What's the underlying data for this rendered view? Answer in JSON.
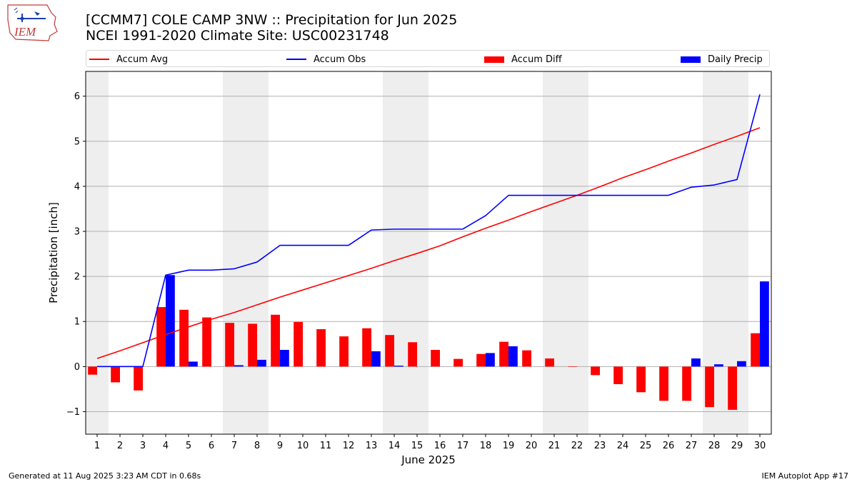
{
  "logo": {
    "text": "IEM"
  },
  "header": {
    "title": "[CCMM7] COLE CAMP 3NW :: Precipitation for Jun 2025",
    "subtitle": "NCEI 1991-2020 Climate Site: USC00231748"
  },
  "legend": {
    "items": [
      {
        "label": "Accum Avg",
        "kind": "line",
        "color": "#ff0000"
      },
      {
        "label": "Accum Obs",
        "kind": "line",
        "color": "#0000ff"
      },
      {
        "label": "Accum Diff",
        "kind": "box",
        "color": "#ff0000"
      },
      {
        "label": "Daily Precip",
        "kind": "box",
        "color": "#0000ff"
      }
    ]
  },
  "footer": {
    "left": "Generated at 11 Aug 2025 3:23 AM CDT in 0.68s",
    "right": "IEM Autoplot App #17"
  },
  "chart_data": {
    "type": "bar",
    "title": "[CCMM7] COLE CAMP 3NW :: Precipitation for Jun 2025",
    "xlabel": "June 2025",
    "ylabel": "Precipitation [inch]",
    "ylim": [
      -1.5,
      6.55
    ],
    "yticks": [
      -1,
      0,
      1,
      2,
      3,
      4,
      5,
      6
    ],
    "ytick_labels": [
      "−1",
      "0",
      "1",
      "2",
      "3",
      "4",
      "5",
      "6"
    ],
    "grid": "horizontal",
    "weekend_shading": [
      [
        1,
        1
      ],
      [
        7,
        8
      ],
      [
        14,
        15
      ],
      [
        21,
        22
      ],
      [
        28,
        29
      ]
    ],
    "colors": {
      "avg": "#ff0000",
      "obs": "#0000ff",
      "shade": "#eeeeee",
      "grid": "#b0b0b0"
    },
    "categories": [
      "1",
      "2",
      "3",
      "4",
      "5",
      "6",
      "7",
      "8",
      "9",
      "10",
      "11",
      "12",
      "13",
      "14",
      "15",
      "16",
      "17",
      "18",
      "19",
      "20",
      "21",
      "22",
      "23",
      "24",
      "25",
      "26",
      "27",
      "28",
      "29",
      "30"
    ],
    "series": [
      {
        "name": "Accum Avg",
        "type": "line",
        "color": "#ff0000",
        "values": [
          0.18,
          0.35,
          0.53,
          0.71,
          0.88,
          1.05,
          1.2,
          1.37,
          1.54,
          1.7,
          1.86,
          2.02,
          2.18,
          2.35,
          2.51,
          2.68,
          2.88,
          3.07,
          3.25,
          3.44,
          3.62,
          3.8,
          3.99,
          4.19,
          4.37,
          4.56,
          4.74,
          4.93,
          5.11,
          5.3
        ]
      },
      {
        "name": "Accum Obs",
        "type": "line",
        "color": "#0000ff",
        "values": [
          0.0,
          0.0,
          0.0,
          2.03,
          2.14,
          2.14,
          2.17,
          2.32,
          2.69,
          2.69,
          2.69,
          2.69,
          3.03,
          3.05,
          3.05,
          3.05,
          3.05,
          3.35,
          3.8,
          3.8,
          3.8,
          3.8,
          3.8,
          3.8,
          3.8,
          3.8,
          3.98,
          4.03,
          4.15,
          6.04
        ]
      },
      {
        "name": "Accum Diff",
        "type": "bar",
        "color": "#ff0000",
        "values": [
          -0.18,
          -0.35,
          -0.53,
          1.32,
          1.26,
          1.09,
          0.97,
          0.95,
          1.15,
          0.99,
          0.83,
          0.67,
          0.85,
          0.7,
          0.54,
          0.37,
          0.17,
          0.28,
          0.55,
          0.36,
          0.18,
          0.0,
          -0.19,
          -0.39,
          -0.57,
          -0.76,
          -0.76,
          -0.9,
          -0.96,
          0.74
        ]
      },
      {
        "name": "Daily Precip",
        "type": "bar",
        "color": "#0000ff",
        "values": [
          0.0,
          0.0,
          0.0,
          2.03,
          0.11,
          0.0,
          0.03,
          0.15,
          0.37,
          0.0,
          0.0,
          0.0,
          0.34,
          0.02,
          0.0,
          0.0,
          0.0,
          0.3,
          0.45,
          0.0,
          0.0,
          0.0,
          0.0,
          0.0,
          0.0,
          0.0,
          0.18,
          0.05,
          0.12,
          1.89
        ]
      }
    ]
  }
}
